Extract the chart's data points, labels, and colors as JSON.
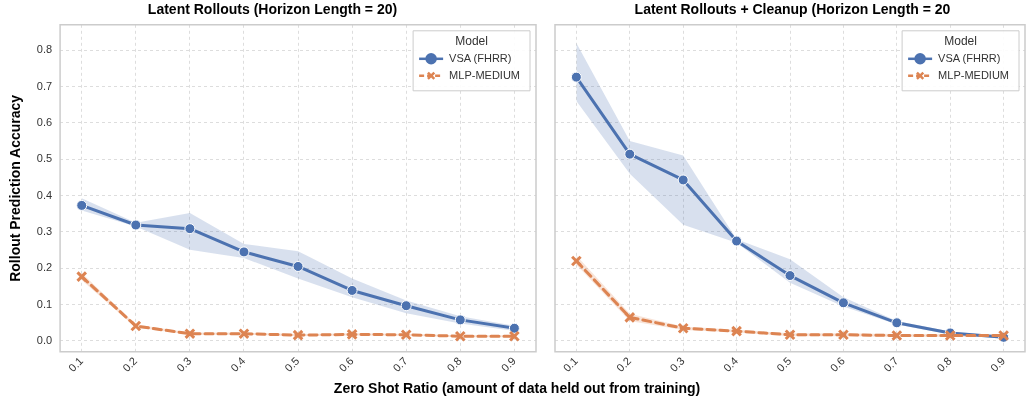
{
  "chart_data": [
    {
      "type": "line",
      "title": "Latent Rollouts (Horizon Length = 20)",
      "xlabel": "Zero Shot Ratio (amount of data held out from training)",
      "ylabel": "Rollout Prediction Accuracy",
      "legend_title": "Model",
      "legend": "top right",
      "grid": true,
      "x": [
        0.1,
        0.2,
        0.3,
        0.4,
        0.5,
        0.6,
        0.7,
        0.8,
        0.9
      ],
      "xlim": [
        0.06,
        0.94
      ],
      "xticks": [
        0.1,
        0.2,
        0.3,
        0.4,
        0.5,
        0.6,
        0.7,
        0.8,
        0.9
      ],
      "ylim": [
        -0.03,
        0.87
      ],
      "yticks": [
        {
          "value": 0,
          "label": "0.0"
        },
        0.1,
        0.2,
        0.3,
        0.4,
        0.5,
        0.6,
        0.7,
        0.8
      ],
      "series": [
        {
          "name": "VSA (FHRR)",
          "color": "#4c72b0",
          "marker": "circle",
          "line_style": "solid",
          "values": [
            0.373,
            0.319,
            0.309,
            0.245,
            0.205,
            0.139,
            0.097,
            0.058,
            0.035
          ],
          "lower": [
            0.359,
            0.315,
            0.251,
            0.228,
            0.172,
            0.12,
            0.076,
            0.048,
            0.028
          ],
          "upper": [
            0.393,
            0.325,
            0.352,
            0.267,
            0.247,
            0.172,
            0.111,
            0.068,
            0.042
          ]
        },
        {
          "name": "MLP-MEDIUM",
          "color": "#dd8452",
          "marker": "cross",
          "line_style": "dashed",
          "values": [
            0.177,
            0.041,
            0.02,
            0.02,
            0.016,
            0.018,
            0.017,
            0.013,
            0.013
          ],
          "lower": [
            0.167,
            0.037,
            0.017,
            0.017,
            0.013,
            0.015,
            0.014,
            0.01,
            0.01
          ],
          "upper": [
            0.187,
            0.045,
            0.023,
            0.023,
            0.019,
            0.021,
            0.02,
            0.016,
            0.016
          ]
        }
      ]
    },
    {
      "type": "line",
      "title": "Latent Rollouts + Cleanup (Horizon Length = 20",
      "legend_title": "Model",
      "legend": "top right",
      "grid": true,
      "tick_labels": "x",
      "x": [
        0.1,
        0.2,
        0.3,
        0.4,
        0.5,
        0.6,
        0.7,
        0.8,
        0.9
      ],
      "xlim": [
        0.06,
        0.94
      ],
      "xticks": [
        0.1,
        0.2,
        0.3,
        0.4,
        0.5,
        0.6,
        0.7,
        0.8,
        0.9
      ],
      "ylim": [
        -0.03,
        0.87
      ],
      "yticks": [
        0,
        0.1,
        0.2,
        0.3,
        0.4,
        0.5,
        0.6,
        0.7,
        0.8
      ],
      "series": [
        {
          "name": "VSA (FHRR)",
          "color": "#4c72b0",
          "marker": "circle",
          "line_style": "solid",
          "values": [
            0.726,
            0.514,
            0.443,
            0.275,
            0.18,
            0.105,
            0.05,
            0.022,
            0.01
          ],
          "lower": [
            0.66,
            0.46,
            0.32,
            0.27,
            0.16,
            0.095,
            0.045,
            0.018,
            0.007
          ],
          "upper": [
            0.82,
            0.55,
            0.51,
            0.28,
            0.225,
            0.12,
            0.055,
            0.026,
            0.013
          ]
        },
        {
          "name": "MLP-MEDIUM",
          "color": "#dd8452",
          "marker": "cross",
          "line_style": "dashed",
          "values": [
            0.22,
            0.065,
            0.035,
            0.027,
            0.017,
            0.017,
            0.015,
            0.015,
            0.015
          ],
          "lower": [
            0.21,
            0.055,
            0.03,
            0.023,
            0.013,
            0.013,
            0.011,
            0.011,
            0.011
          ],
          "upper": [
            0.235,
            0.075,
            0.04,
            0.031,
            0.021,
            0.021,
            0.019,
            0.019,
            0.019
          ]
        }
      ]
    }
  ]
}
